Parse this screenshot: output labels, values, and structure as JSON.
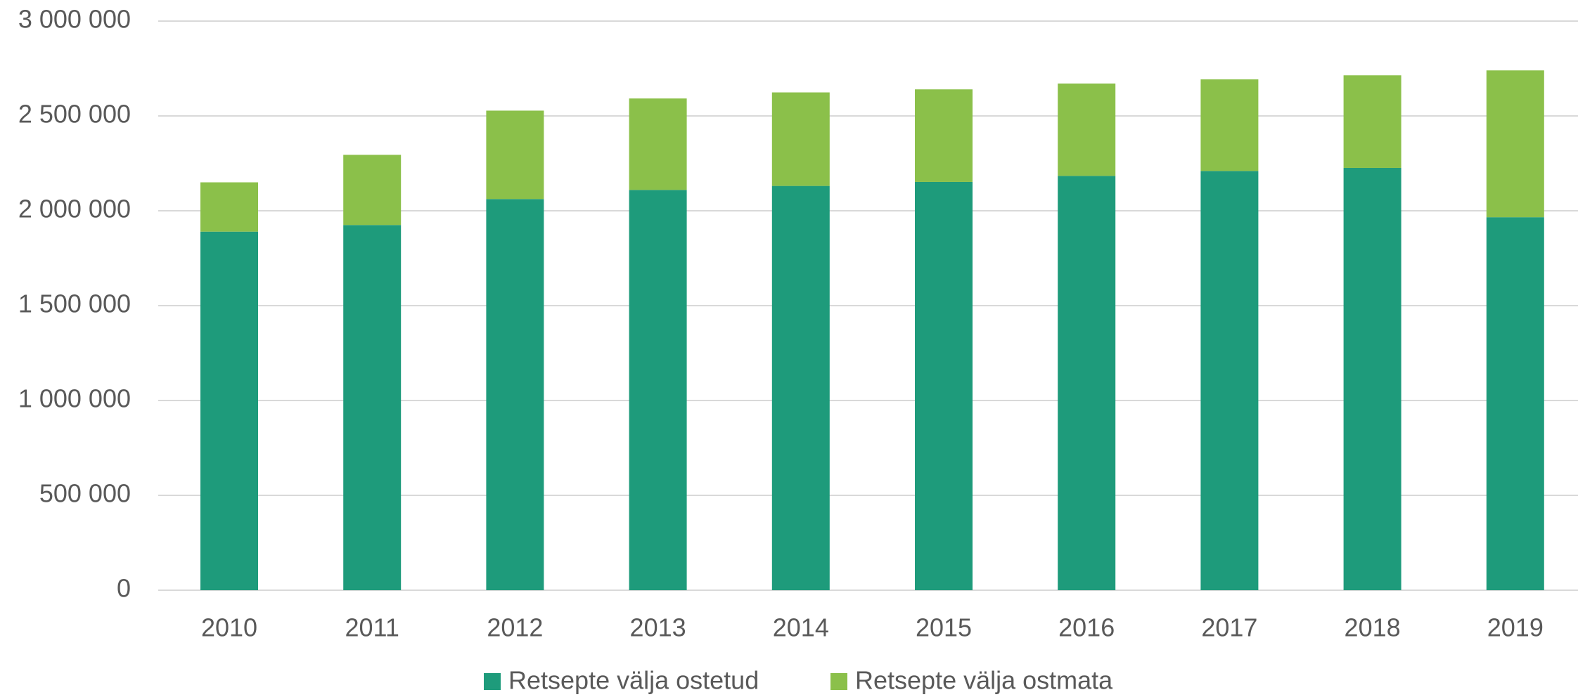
{
  "chart_data": {
    "type": "stacked_bar",
    "categories": [
      "2010",
      "2011",
      "2012",
      "2013",
      "2014",
      "2015",
      "2016",
      "2017",
      "2018",
      "2019"
    ],
    "series": [
      {
        "name": "Retsepte välja ostetud",
        "color": "#1e9b7b",
        "values": [
          1890000,
          1925000,
          2062000,
          2110000,
          2131000,
          2152000,
          2184000,
          2210000,
          2226000,
          1966000
        ]
      },
      {
        "name": "Retsepte välja ostmata",
        "color": "#8bc04a",
        "values": [
          260000,
          370000,
          466000,
          482000,
          493000,
          488000,
          487000,
          483000,
          488000,
          774000
        ]
      }
    ],
    "ylim": [
      0,
      3000000
    ],
    "yticks": [
      0,
      {
        "value": 500000,
        "label": "500 000"
      },
      {
        "value": 1000000,
        "label": "1 000 000"
      },
      {
        "value": 1500000,
        "label": "1 500 000"
      },
      {
        "value": 2000000,
        "label": "2 000 000"
      },
      {
        "value": 2500000,
        "label": "2 500 000"
      },
      {
        "value": 3000000,
        "label": "3 000 000"
      }
    ],
    "grid": true,
    "legend": "bottom"
  }
}
